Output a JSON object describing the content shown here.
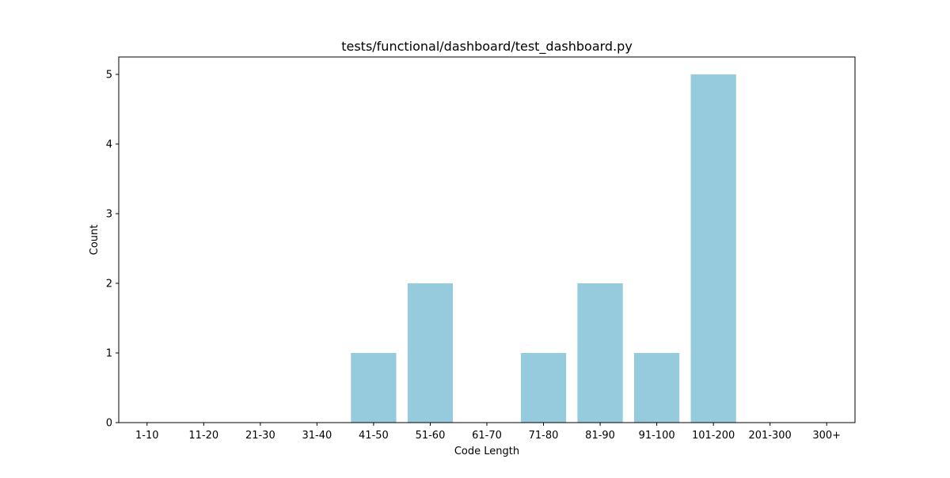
{
  "chart_data": {
    "type": "bar",
    "title": "tests/functional/dashboard/test_dashboard.py",
    "xlabel": "Code Length",
    "ylabel": "Count",
    "categories": [
      "1-10",
      "11-20",
      "21-30",
      "31-40",
      "41-50",
      "51-60",
      "61-70",
      "71-80",
      "81-90",
      "91-100",
      "101-200",
      "201-300",
      "300+"
    ],
    "values": [
      0,
      0,
      0,
      0,
      1,
      2,
      0,
      1,
      2,
      1,
      5,
      0,
      0
    ],
    "ylim": [
      0,
      5.25
    ],
    "yticks": [
      0,
      1,
      2,
      3,
      4,
      5
    ],
    "grid": false,
    "bar_color": "#96cadd"
  }
}
